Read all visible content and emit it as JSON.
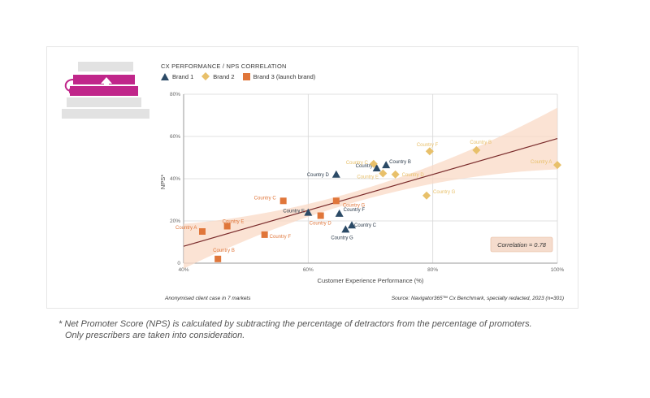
{
  "header": {
    "title": "CX PERFORMANCE / NPS CORRELATION"
  },
  "legend": [
    {
      "label": "Brand 1",
      "marker": "triangle",
      "color": "#2b4a66"
    },
    {
      "label": "Brand 2",
      "marker": "diamond",
      "color": "#e8c06a"
    },
    {
      "label": "Brand 3 (launch brand)",
      "marker": "square",
      "color": "#e0763a"
    }
  ],
  "footer": {
    "left": "Anonymised client case in 7 markets",
    "right": "Source:  Navigator365™ Cx Benchmark, specialty redacted, 2023 (n=301)"
  },
  "footnote": {
    "line1": "* Net Promoter Score (NPS) is calculated by subtracting the percentage of detractors from the percentage of promoters.",
    "line2": "Only prescribers are taken into consideration."
  },
  "colors": {
    "brand1": "#2b4a66",
    "brand2": "#e8c06a",
    "brand3": "#e0763a",
    "trend": "#7a2b2b",
    "band": "#f9d9c6",
    "logo_magenta": "#c0268a",
    "logo_grey": "#e2e2e2"
  },
  "chart_data": {
    "type": "scatter",
    "xlabel": "Customer Experience Performance (%)",
    "ylabel": "NPS*",
    "xlim": [
      40,
      100
    ],
    "ylim": [
      0,
      80
    ],
    "x_ticks": [
      "40%",
      "60%",
      "80%",
      "100%"
    ],
    "x_tick_values": [
      40,
      60,
      80,
      100
    ],
    "y_ticks": [
      "0",
      "20%",
      "40%",
      "60%",
      "80%"
    ],
    "y_tick_values": [
      0,
      20,
      40,
      60,
      80
    ],
    "grid": true,
    "trendline": {
      "x": [
        40,
        100
      ],
      "y": [
        8,
        59
      ]
    },
    "annotation": "Correlation = 0.78",
    "series": [
      {
        "name": "Brand 1",
        "marker": "triangle",
        "points": [
          {
            "label": "Country A",
            "x": 71,
            "y": 45
          },
          {
            "label": "Country B",
            "x": 72.5,
            "y": 46.5
          },
          {
            "label": "Country C",
            "x": 67,
            "y": 18
          },
          {
            "label": "Country D",
            "x": 64.5,
            "y": 42
          },
          {
            "label": "Country E",
            "x": 60,
            "y": 24
          },
          {
            "label": "Country F",
            "x": 65,
            "y": 23.5
          },
          {
            "label": "Country G",
            "x": 66,
            "y": 16
          }
        ]
      },
      {
        "name": "Brand 2",
        "marker": "diamond",
        "points": [
          {
            "label": "Country A",
            "x": 100,
            "y": 46.5
          },
          {
            "label": "Country B",
            "x": 87,
            "y": 53.5
          },
          {
            "label": "Country C",
            "x": 70.5,
            "y": 47
          },
          {
            "label": "Country D",
            "x": 74,
            "y": 42
          },
          {
            "label": "Country E",
            "x": 72,
            "y": 42.5
          },
          {
            "label": "Country F",
            "x": 79.5,
            "y": 53
          },
          {
            "label": "Country G",
            "x": 79,
            "y": 32
          }
        ]
      },
      {
        "name": "Brand 3 (launch brand)",
        "marker": "square",
        "points": [
          {
            "label": "Country A",
            "x": 43,
            "y": 15
          },
          {
            "label": "Country B",
            "x": 45.5,
            "y": 2
          },
          {
            "label": "Country C",
            "x": 56,
            "y": 29.5
          },
          {
            "label": "Country D",
            "x": 62,
            "y": 22.5
          },
          {
            "label": "Country E",
            "x": 47,
            "y": 17.5
          },
          {
            "label": "Country F",
            "x": 53,
            "y": 13.5
          },
          {
            "label": "Country G",
            "x": 64.5,
            "y": 29.5
          }
        ]
      }
    ]
  }
}
